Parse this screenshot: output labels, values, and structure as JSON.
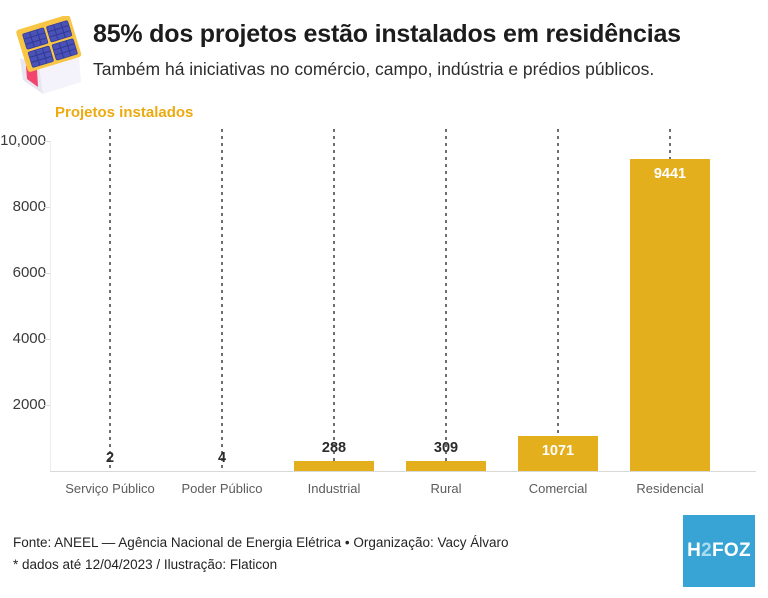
{
  "header": {
    "title": "85% dos projetos estão instalados em residências",
    "subtitle": "Também há iniciativas no comércio, campo, indústria e prédios públicos.",
    "icon": "house-solar-icon"
  },
  "chart_data": {
    "type": "bar",
    "title": "Projetos instalados",
    "categories": [
      "Serviço Público",
      "Poder Público",
      "Industrial",
      "Rural",
      "Comercial",
      "Residencial"
    ],
    "values": [
      2,
      4,
      288,
      309,
      1071,
      9441
    ],
    "value_labels": [
      "2",
      "4",
      "288",
      "309",
      "1071",
      "9441"
    ],
    "xlabel": "",
    "ylabel": "Projetos instalados",
    "ylim": [
      0,
      10000
    ],
    "yticks": [
      {
        "value": 10000,
        "label": "10,000"
      },
      {
        "value": 8000,
        "label": "8000"
      },
      {
        "value": 6000,
        "label": "6000"
      },
      {
        "value": 4000,
        "label": "4000"
      },
      {
        "value": 2000,
        "label": "2000"
      }
    ],
    "grid": "vertical-dashed-per-category",
    "legend": "none",
    "bar_color": "#E3AF1D",
    "label_color_inside": "#FFFFFF",
    "label_color_outside": "#2B2B2B",
    "axis_title_color": "#ECAA10"
  },
  "footer": {
    "line1": "Fonte: ANEEL — Agência Nacional de Energia Elétrica • Organização: Vacy Álvaro",
    "line2": "* dados até 12/04/2023 / Ilustração: Flaticon"
  },
  "logo": {
    "text": "H2FOZ",
    "part1": "H",
    "part2": "2",
    "part3": "FOZ",
    "bg_color": "#37A4D5",
    "accent_color": "#A9DCF1"
  }
}
